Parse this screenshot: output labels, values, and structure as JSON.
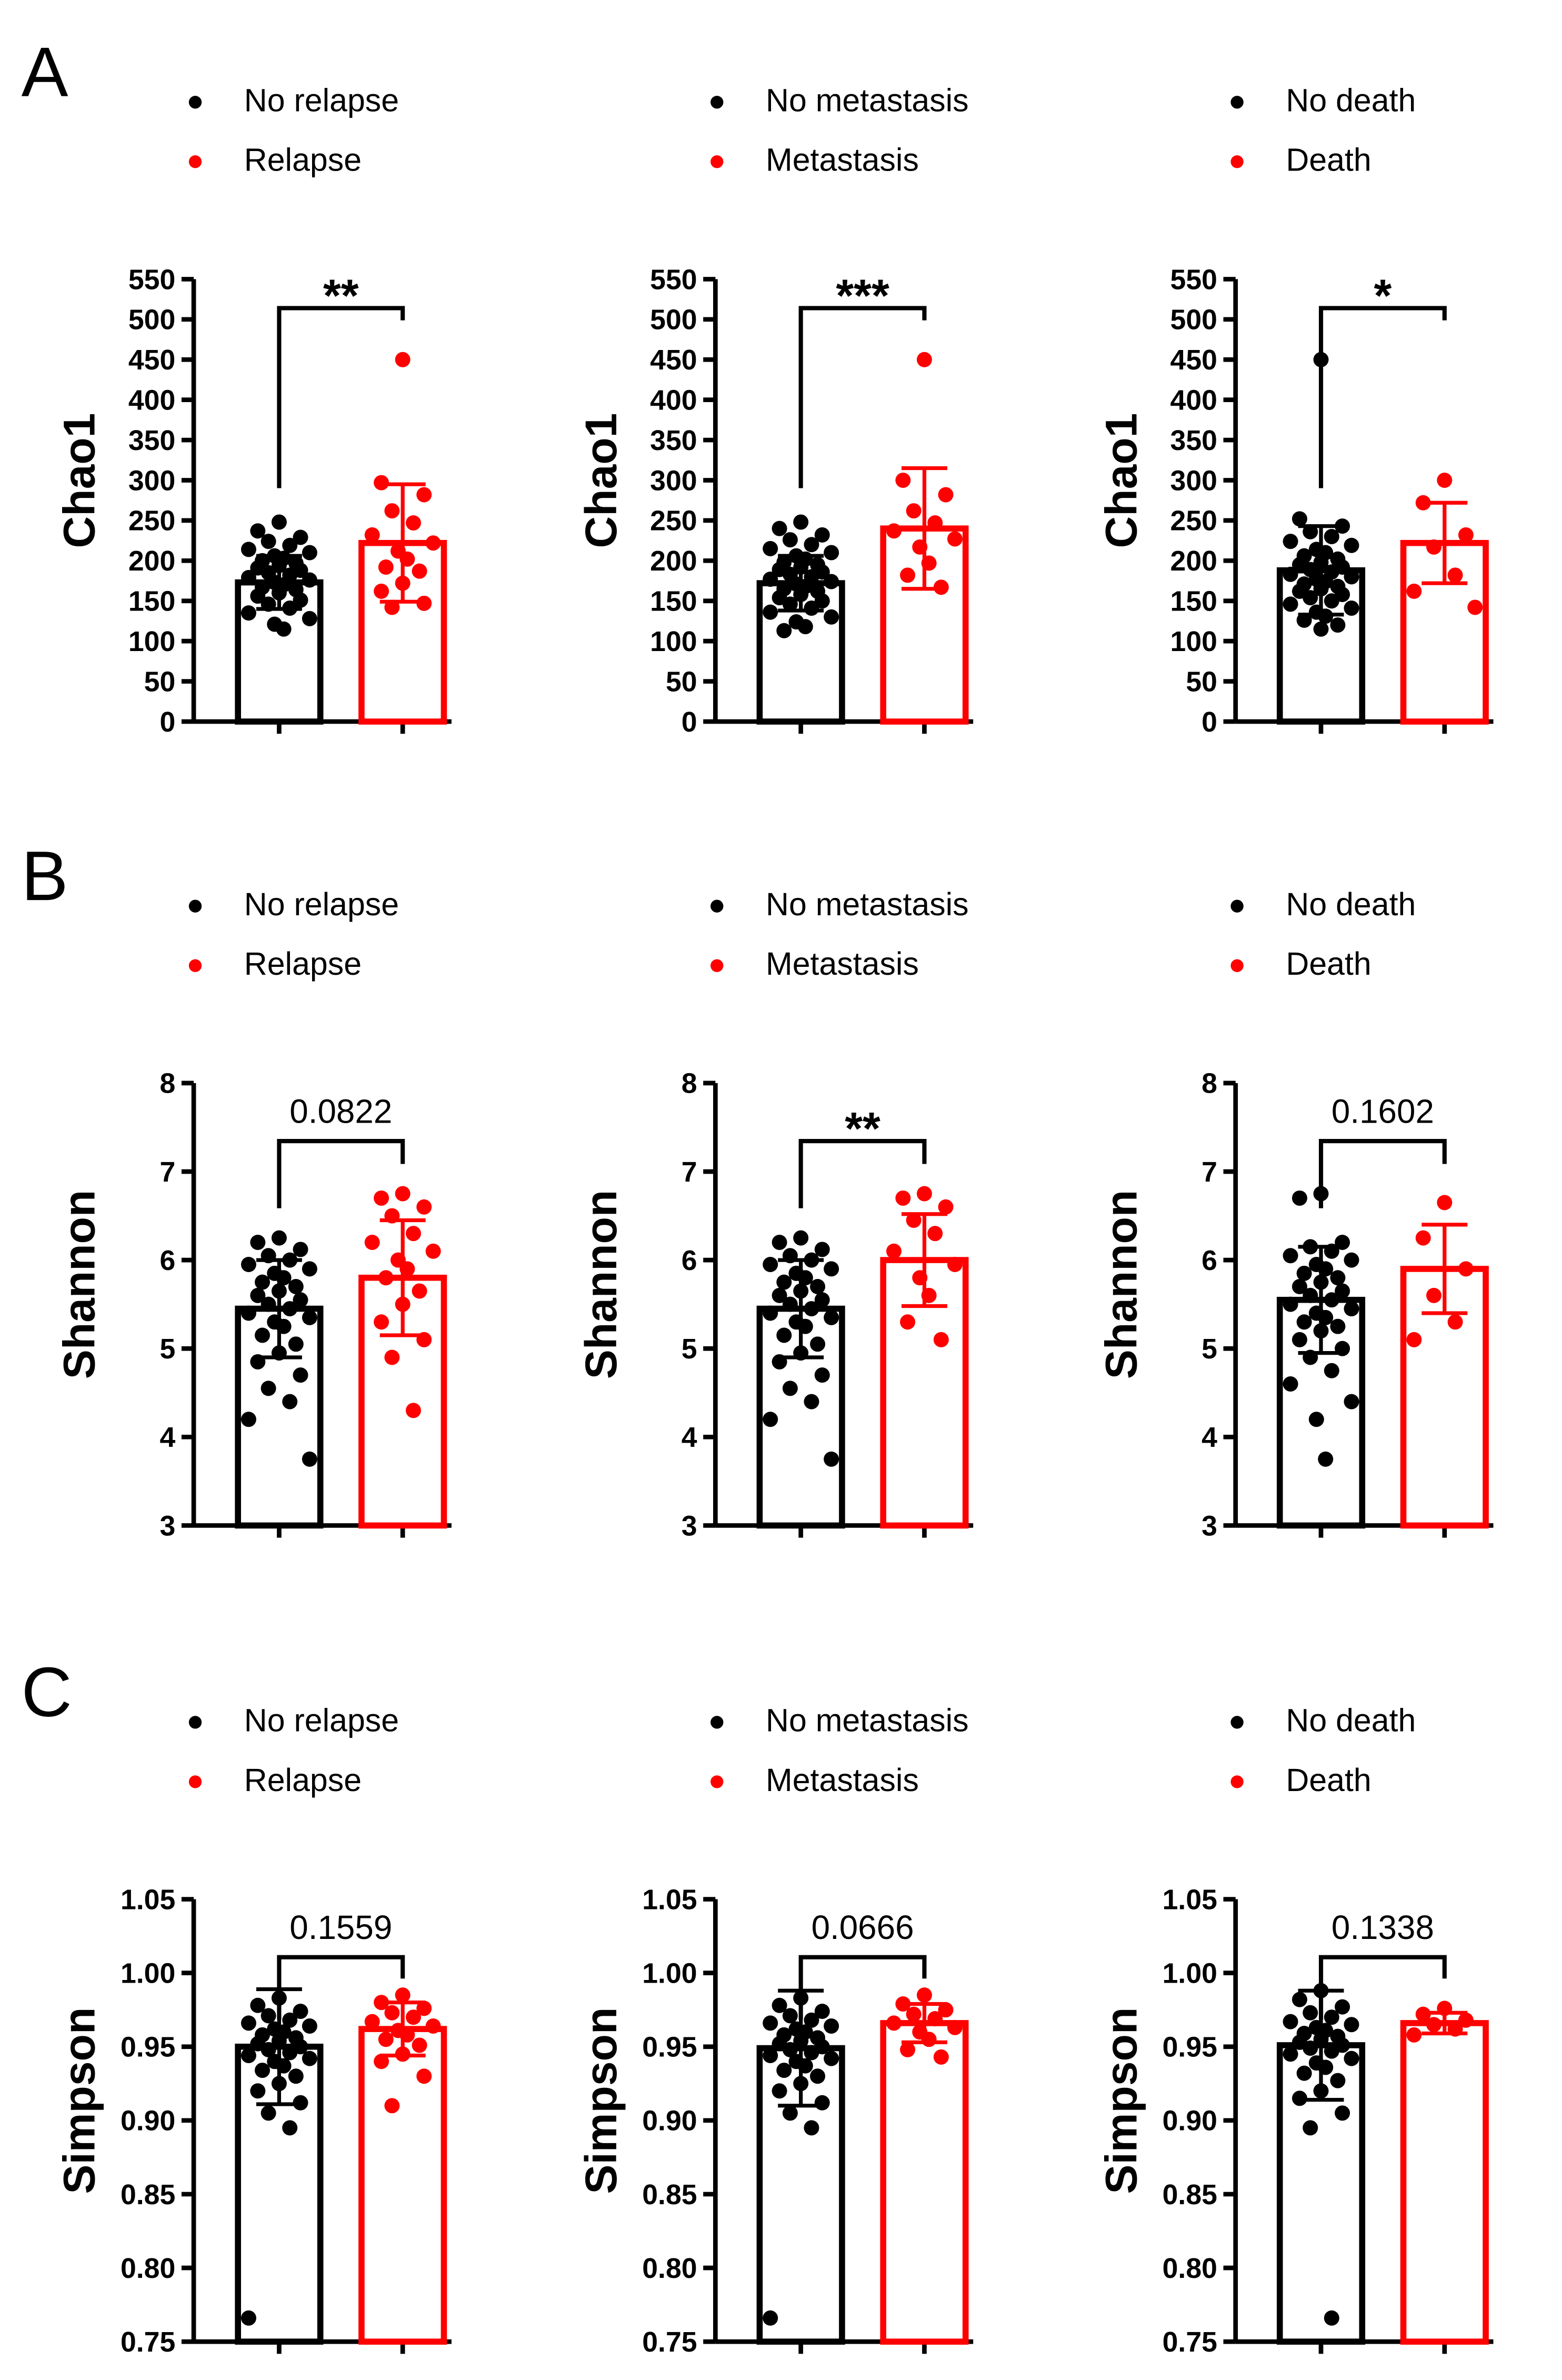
{
  "chart_data": [
    {
      "type": "bar",
      "panel": "A",
      "title": "",
      "xlabel": "",
      "ylabel": "Chao1",
      "ylim": [
        0,
        550
      ],
      "yticks": [
        "0",
        "50",
        "100",
        "150",
        "200",
        "250",
        "300",
        "350",
        "400",
        "450",
        "500",
        "550"
      ],
      "categories": [
        "No relapse",
        "Relapse"
      ],
      "colors": [
        "#000000",
        "#ff0000"
      ],
      "means": [
        173,
        222
      ],
      "sd": [
        33,
        73
      ],
      "points": [
        [
          248,
          237,
          229,
          224,
          219,
          214,
          210,
          206,
          203,
          200,
          197,
          194,
          191,
          188,
          185,
          182,
          179,
          176,
          173,
          170,
          167,
          164,
          160,
          156,
          151,
          146,
          141,
          135,
          128,
          121,
          115
        ],
        [
          450,
          297,
          282,
          262,
          247,
          232,
          222,
          212,
          202,
          192,
          187,
          172,
          162,
          147,
          142
        ]
      ],
      "significance": "**"
    },
    {
      "type": "bar",
      "panel": "A",
      "title": "",
      "xlabel": "",
      "ylabel": "Chao1",
      "ylim": [
        0,
        550
      ],
      "yticks": [
        "0",
        "50",
        "100",
        "150",
        "200",
        "250",
        "300",
        "350",
        "400",
        "450",
        "500",
        "550"
      ],
      "categories": [
        "No metastasis",
        "Metastasis"
      ],
      "colors": [
        "#000000",
        "#ff0000"
      ],
      "means": [
        172,
        240
      ],
      "sd": [
        34,
        75
      ],
      "points": [
        [
          248,
          240,
          232,
          226,
          220,
          215,
          210,
          206,
          202,
          198,
          195,
          192,
          189,
          186,
          183,
          180,
          177,
          174,
          171,
          168,
          165,
          162,
          158,
          154,
          150,
          146,
          141,
          136,
          130,
          124,
          118,
          113
        ],
        [
          450,
          300,
          282,
          262,
          247,
          237,
          227,
          217,
          197,
          182,
          167
        ]
      ],
      "significance": "***"
    },
    {
      "type": "bar",
      "panel": "A",
      "title": "",
      "xlabel": "",
      "ylabel": "Chao1",
      "ylim": [
        0,
        550
      ],
      "yticks": [
        "0",
        "50",
        "100",
        "150",
        "200",
        "250",
        "300",
        "350",
        "400",
        "450",
        "500",
        "550"
      ],
      "categories": [
        "No death",
        "Death"
      ],
      "colors": [
        "#000000",
        "#ff0000"
      ],
      "means": [
        188,
        222
      ],
      "sd": [
        55,
        50
      ],
      "points": [
        [
          450,
          252,
          243,
          236,
          230,
          224,
          219,
          214,
          210,
          206,
          202,
          198,
          195,
          192,
          189,
          186,
          183,
          180,
          177,
          174,
          171,
          168,
          165,
          162,
          158,
          154,
          150,
          146,
          141,
          136,
          131,
          126,
          120,
          115
        ],
        [
          300,
          272,
          232,
          217,
          182,
          162,
          142
        ]
      ],
      "significance": "*"
    },
    {
      "type": "bar",
      "panel": "B",
      "title": "",
      "xlabel": "",
      "ylabel": "Shannon",
      "ylim": [
        3,
        8
      ],
      "yticks": [
        "3",
        "4",
        "5",
        "6",
        "7",
        "8"
      ],
      "categories": [
        "No relapse",
        "Relapse"
      ],
      "colors": [
        "#000000",
        "#ff0000"
      ],
      "means": [
        5.45,
        5.8
      ],
      "sd": [
        0.55,
        0.65
      ],
      "points": [
        [
          6.25,
          6.2,
          6.12,
          6.05,
          6.0,
          5.95,
          5.9,
          5.85,
          5.8,
          5.75,
          5.7,
          5.65,
          5.6,
          5.55,
          5.5,
          5.45,
          5.4,
          5.35,
          5.3,
          5.25,
          5.15,
          5.05,
          4.95,
          4.85,
          4.7,
          4.55,
          4.4,
          4.2,
          3.75
        ],
        [
          6.75,
          6.7,
          6.6,
          6.5,
          6.3,
          6.2,
          6.1,
          6.0,
          5.9,
          5.8,
          5.65,
          5.5,
          5.3,
          5.1,
          4.9,
          4.3
        ]
      ],
      "significance": "0.0822"
    },
    {
      "type": "bar",
      "panel": "B",
      "title": "",
      "xlabel": "",
      "ylabel": "Shannon",
      "ylim": [
        3,
        8
      ],
      "yticks": [
        "3",
        "4",
        "5",
        "6",
        "7",
        "8"
      ],
      "categories": [
        "No metastasis",
        "Metastasis"
      ],
      "colors": [
        "#000000",
        "#ff0000"
      ],
      "means": [
        5.45,
        6.0
      ],
      "sd": [
        0.55,
        0.52
      ],
      "points": [
        [
          6.25,
          6.2,
          6.12,
          6.05,
          6.0,
          5.95,
          5.9,
          5.85,
          5.8,
          5.75,
          5.7,
          5.65,
          5.6,
          5.55,
          5.5,
          5.45,
          5.4,
          5.35,
          5.3,
          5.25,
          5.15,
          5.05,
          4.95,
          4.85,
          4.7,
          4.55,
          4.4,
          4.2,
          3.75
        ],
        [
          6.75,
          6.7,
          6.6,
          6.45,
          6.3,
          6.1,
          5.95,
          5.8,
          5.6,
          5.3,
          5.1
        ]
      ],
      "significance": "**"
    },
    {
      "type": "bar",
      "panel": "B",
      "title": "",
      "xlabel": "",
      "ylabel": "Shannon",
      "ylim": [
        3,
        8
      ],
      "yticks": [
        "3",
        "4",
        "5",
        "6",
        "7",
        "8"
      ],
      "categories": [
        "No death",
        "Death"
      ],
      "colors": [
        "#000000",
        "#ff0000"
      ],
      "means": [
        5.55,
        5.9
      ],
      "sd": [
        0.6,
        0.5
      ],
      "points": [
        [
          6.75,
          6.7,
          6.2,
          6.15,
          6.1,
          6.05,
          6.0,
          5.95,
          5.9,
          5.85,
          5.8,
          5.75,
          5.7,
          5.65,
          5.6,
          5.55,
          5.5,
          5.45,
          5.4,
          5.35,
          5.3,
          5.25,
          5.2,
          5.1,
          5.0,
          4.9,
          4.75,
          4.6,
          4.4,
          4.2,
          3.75
        ],
        [
          6.65,
          6.25,
          5.9,
          5.6,
          5.3,
          5.1
        ]
      ],
      "significance": "0.1602"
    },
    {
      "type": "bar",
      "panel": "C",
      "title": "",
      "xlabel": "",
      "ylabel": "Simpson",
      "ylim": [
        0.75,
        1.05
      ],
      "yticks": [
        "0.75",
        "0.80",
        "0.85",
        "0.90",
        "0.95",
        "1.00",
        "1.05"
      ],
      "categories": [
        "No relapse",
        "Relapse"
      ],
      "colors": [
        "#000000",
        "#ff0000"
      ],
      "means": [
        0.95,
        0.962
      ],
      "sd": [
        0.039,
        0.018
      ],
      "points": [
        [
          0.983,
          0.978,
          0.974,
          0.971,
          0.968,
          0.966,
          0.964,
          0.962,
          0.96,
          0.958,
          0.956,
          0.954,
          0.952,
          0.95,
          0.948,
          0.946,
          0.944,
          0.942,
          0.94,
          0.937,
          0.934,
          0.93,
          0.925,
          0.92,
          0.912,
          0.905,
          0.895,
          0.766
        ],
        [
          0.985,
          0.98,
          0.976,
          0.973,
          0.97,
          0.967,
          0.964,
          0.961,
          0.958,
          0.955,
          0.951,
          0.945,
          0.94,
          0.93,
          0.91
        ]
      ],
      "significance": "0.1559"
    },
    {
      "type": "bar",
      "panel": "C",
      "title": "",
      "xlabel": "",
      "ylabel": "Simpson",
      "ylim": [
        0.75,
        1.05
      ],
      "yticks": [
        "0.75",
        "0.80",
        "0.85",
        "0.90",
        "0.95",
        "1.00",
        "1.05"
      ],
      "categories": [
        "No metastasis",
        "Metastasis"
      ],
      "colors": [
        "#000000",
        "#ff0000"
      ],
      "means": [
        0.949,
        0.966
      ],
      "sd": [
        0.039,
        0.013
      ],
      "points": [
        [
          0.983,
          0.978,
          0.974,
          0.971,
          0.968,
          0.966,
          0.964,
          0.962,
          0.96,
          0.958,
          0.956,
          0.954,
          0.952,
          0.95,
          0.948,
          0.946,
          0.944,
          0.942,
          0.94,
          0.937,
          0.934,
          0.93,
          0.925,
          0.92,
          0.912,
          0.905,
          0.895,
          0.766
        ],
        [
          0.985,
          0.979,
          0.975,
          0.972,
          0.969,
          0.966,
          0.963,
          0.96,
          0.955,
          0.948,
          0.943
        ]
      ],
      "significance": "0.0666"
    },
    {
      "type": "bar",
      "panel": "C",
      "title": "",
      "xlabel": "",
      "ylabel": "Simpson",
      "ylim": [
        0.75,
        1.05
      ],
      "yticks": [
        "0.75",
        "0.80",
        "0.85",
        "0.90",
        "0.95",
        "1.00",
        "1.05"
      ],
      "categories": [
        "No death",
        "Death"
      ],
      "colors": [
        "#000000",
        "#ff0000"
      ],
      "means": [
        0.951,
        0.966
      ],
      "sd": [
        0.037,
        0.007
      ],
      "points": [
        [
          0.988,
          0.982,
          0.977,
          0.973,
          0.97,
          0.967,
          0.965,
          0.963,
          0.961,
          0.959,
          0.957,
          0.955,
          0.953,
          0.951,
          0.949,
          0.947,
          0.945,
          0.942,
          0.939,
          0.936,
          0.932,
          0.927,
          0.92,
          0.915,
          0.905,
          0.895,
          0.766
        ],
        [
          0.976,
          0.972,
          0.968,
          0.965,
          0.962,
          0.958
        ]
      ],
      "significance": "0.1338"
    }
  ],
  "panel_letters": [
    "A",
    "B",
    "C"
  ],
  "legends": [
    {
      "no": "No relapse",
      "yes": "Relapse"
    },
    {
      "no": "No metastasis",
      "yes": "Metastasis"
    },
    {
      "no": "No death",
      "yes": "Death"
    }
  ],
  "colors": {
    "control": "#000000",
    "event": "#ff0000"
  },
  "legend_marker": "•"
}
